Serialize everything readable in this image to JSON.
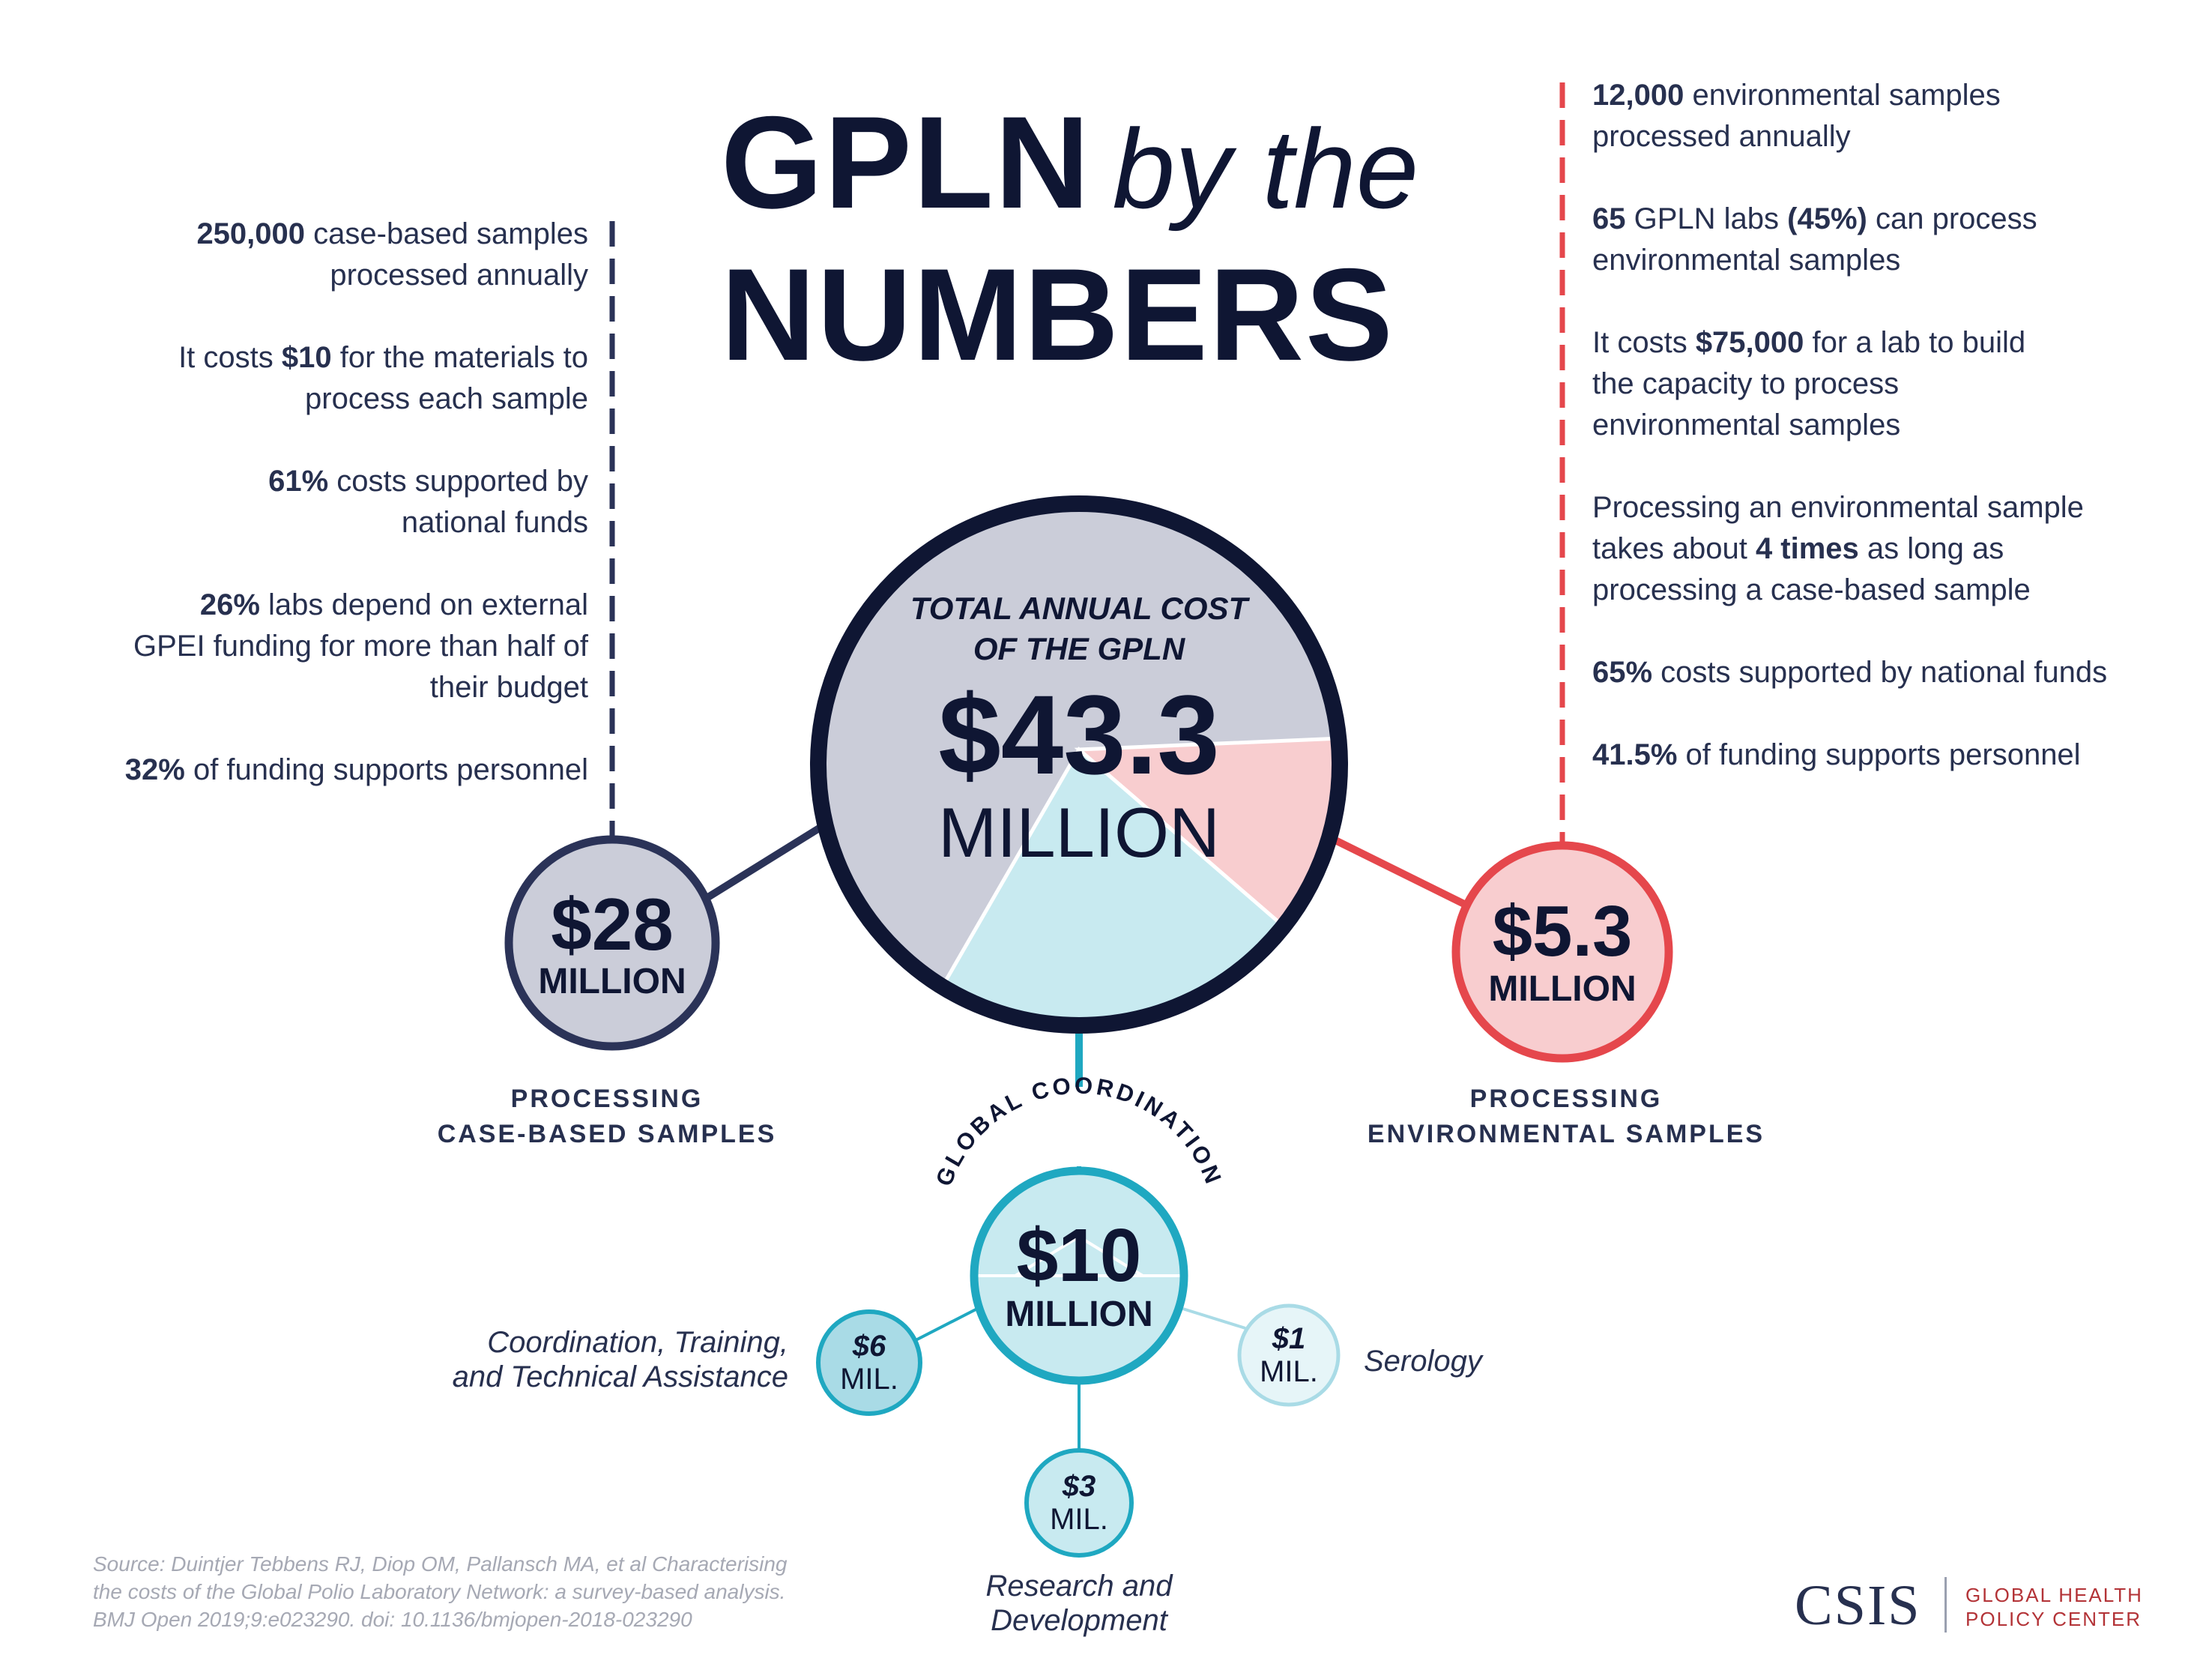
{
  "title": {
    "line1_bold": "GPLN",
    "line1_italic": "by the",
    "line2": "NUMBERS"
  },
  "colors": {
    "navy": "#0f1633",
    "navy_light": "#2b3358",
    "gray_fill": "#cbcdd9",
    "red": "#e5474c",
    "pink": "#f8cdcf",
    "teal": "#1fa8c1",
    "teal_fill": "#c8eaf0"
  },
  "left_facts": [
    {
      "bold": "250,000",
      "text": " case-based samples processed annually"
    },
    {
      "bold": "",
      "text_before": "It costs ",
      "bold_mid": "$10",
      "text": " for the materials to process each sample"
    },
    {
      "bold": "61%",
      "text": " costs supported by national funds"
    },
    {
      "bold": "26%",
      "text": " labs depend on external GPEI funding for more than half of their budget"
    },
    {
      "bold": "32%",
      "text": " of funding supports personnel"
    }
  ],
  "right_facts": [
    {
      "bold": "12,000",
      "text": " environmental samples processed annually"
    },
    {
      "bold": "65",
      "text": " GPLN labs ",
      "bold2": "(45%)",
      "text2": " can process environmental samples"
    },
    {
      "text_before": "It costs ",
      "bold_mid": "$75,000",
      "text": " for a lab to build the capacity to process environmental samples"
    },
    {
      "text_before": "Processing an environmental sample takes about ",
      "bold_mid": "4 times",
      "text": " as long as processing a case-based sample"
    },
    {
      "bold": "65%",
      "text": " costs supported by national funds"
    },
    {
      "bold": "41.5%",
      "text": " of funding supports personnel"
    }
  ],
  "total": {
    "label_line1": "TOTAL ANNUAL COST",
    "label_line2": "OF THE GPLN",
    "amount": "$43.3",
    "unit": "MILLION"
  },
  "pie": [
    {
      "name": "Processing case-based samples",
      "value": 28,
      "color": "#cbcdd9"
    },
    {
      "name": "Processing environmental samples",
      "value": 5.3,
      "color": "#f8cdcf"
    },
    {
      "name": "Global coordination",
      "value": 10,
      "color": "#c8eaf0"
    }
  ],
  "case_based": {
    "amount": "$28",
    "unit": "MILLION",
    "label_line1": "PROCESSING",
    "label_line2": "CASE-BASED SAMPLES"
  },
  "environmental": {
    "amount": "$5.3",
    "unit": "MILLION",
    "label_line1": "PROCESSING",
    "label_line2": "ENVIRONMENTAL SAMPLES"
  },
  "global": {
    "arc_label": "GLOBAL COORDINATION",
    "amount": "$10",
    "unit": "MILLION",
    "sub": [
      {
        "amount": "$6",
        "unit": "MIL.",
        "label_line1": "Coordination, Training,",
        "label_line2": "and Technical Assistance"
      },
      {
        "amount": "$3",
        "unit": "MIL.",
        "label_line1": "Research and",
        "label_line2": "Development"
      },
      {
        "amount": "$1",
        "unit": "MIL.",
        "label_line1": "Serology",
        "label_line2": ""
      }
    ]
  },
  "source": {
    "line1": "Source: Duintjer Tebbens RJ, Diop OM, Pallansch MA, et al Characterising",
    "line2": "the costs of the Global Polio Laboratory Network: a survey-based analysis.",
    "line3": "BMJ Open 2019;9:e023290. doi: 10.1136/bmjopen-2018-023290"
  },
  "logo": {
    "mark": "CSIS",
    "line1": "GLOBAL HEALTH",
    "line2": "POLICY CENTER"
  }
}
